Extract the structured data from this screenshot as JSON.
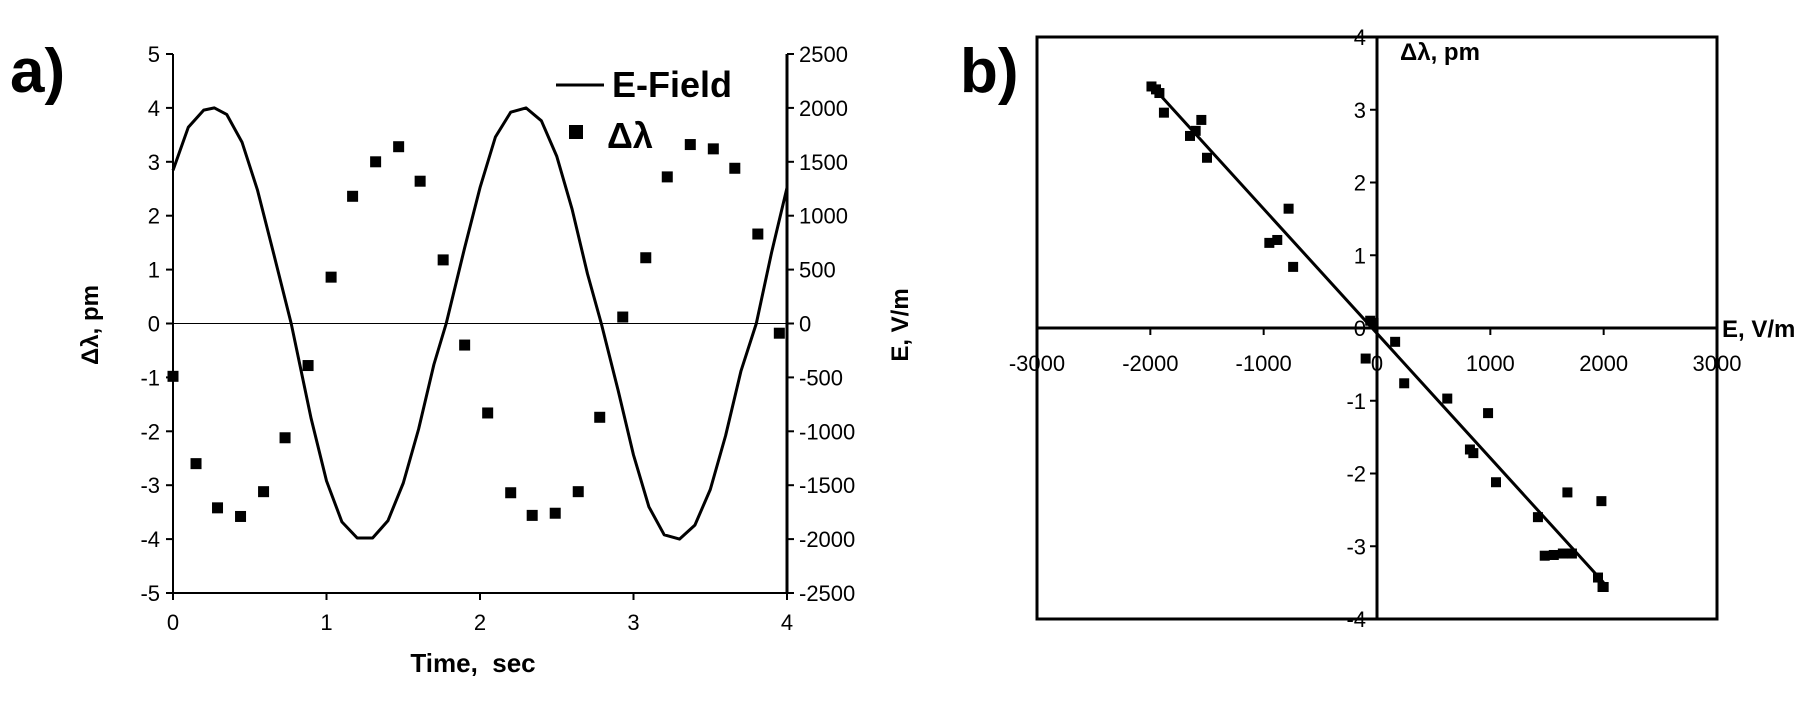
{
  "chart_data": [
    {
      "panel": "a)",
      "type": "line",
      "title": "",
      "xlabel": "Time,  sec",
      "ylabel": "Δλ, pm",
      "y2label": "E, V/m",
      "xlim": [
        0,
        4
      ],
      "ylim": [
        -5,
        5
      ],
      "y2lim": [
        -2500,
        2500
      ],
      "xticks": [
        "0",
        "1",
        "2",
        "3",
        "4"
      ],
      "yticks": [
        "-5",
        "-4",
        "-3",
        "-2",
        "-1",
        "0",
        "1",
        "2",
        "3",
        "4",
        "5"
      ],
      "y2ticks": [
        "-2500",
        "-2000",
        "-1500",
        "-1000",
        "-500",
        "0",
        "500",
        "1000",
        "1500",
        "2000",
        "2500"
      ],
      "zero_line": true,
      "grid": false,
      "legend": {
        "position": "top-right",
        "entries": [
          {
            "label": "E-Field",
            "marker": "line"
          },
          {
            "label": "Δλ",
            "marker": "square"
          }
        ]
      },
      "series": [
        {
          "name": "E-Field",
          "axis": "right",
          "style": "line",
          "x": [
            0.0,
            0.1,
            0.2,
            0.27,
            0.35,
            0.45,
            0.55,
            0.65,
            0.77,
            0.9,
            1.0,
            1.1,
            1.2,
            1.3,
            1.4,
            1.5,
            1.6,
            1.7,
            1.78,
            1.9,
            2.0,
            2.1,
            2.2,
            2.3,
            2.4,
            2.5,
            2.6,
            2.7,
            2.79,
            2.9,
            3.0,
            3.1,
            3.2,
            3.3,
            3.4,
            3.5,
            3.6,
            3.7,
            3.8,
            3.9,
            4.0
          ],
          "y": [
            1420,
            1820,
            1980,
            2000,
            1940,
            1680,
            1240,
            680,
            0,
            -880,
            -1460,
            -1840,
            -1990,
            -1990,
            -1830,
            -1480,
            -980,
            -380,
            0,
            700,
            1260,
            1730,
            1960,
            2000,
            1880,
            1550,
            1060,
            460,
            0,
            -620,
            -1220,
            -1700,
            -1960,
            -2000,
            -1870,
            -1540,
            -1040,
            -440,
            0,
            660,
            1260
          ]
        },
        {
          "name": "Δλ",
          "axis": "left",
          "style": "markers",
          "x": [
            0.0,
            0.15,
            0.29,
            0.44,
            0.59,
            0.73,
            0.88,
            1.03,
            1.17,
            1.32,
            1.47,
            1.61,
            1.76,
            1.9,
            2.05,
            2.2,
            2.34,
            2.49,
            2.64,
            2.78,
            2.93,
            3.08,
            3.22,
            3.37,
            3.52,
            3.66,
            3.81,
            3.95
          ],
          "y": [
            -0.98,
            -2.6,
            -3.42,
            -3.58,
            -3.12,
            -2.12,
            -0.78,
            0.86,
            2.36,
            3.0,
            3.28,
            2.64,
            1.18,
            -0.4,
            -1.66,
            -3.14,
            -3.56,
            -3.52,
            -3.12,
            -1.74,
            0.12,
            1.22,
            2.72,
            3.32,
            3.24,
            2.88,
            1.66,
            -0.18
          ]
        }
      ]
    },
    {
      "panel": "b)",
      "type": "scatter",
      "title": "",
      "xlabel": "E, V/m",
      "ylabel": "Δλ, pm",
      "xlim": [
        -3000,
        3000
      ],
      "ylim": [
        -4,
        4
      ],
      "xticks": [
        "-3000",
        "-2000",
        "-1000",
        "0",
        "1000",
        "2000",
        "3000"
      ],
      "yticks": [
        "-4",
        "-3",
        "-2",
        "-1",
        "0",
        "1",
        "2",
        "3",
        "4"
      ],
      "grid": false,
      "series": [
        {
          "name": "",
          "style": "markers",
          "x": [
            -1990,
            -1950,
            -1920,
            -1880,
            -1650,
            -1600,
            -1550,
            -1500,
            -950,
            -880,
            -780,
            -740,
            -100,
            -60,
            -30,
            160,
            240,
            620,
            980,
            1050,
            820,
            850,
            1420,
            1480,
            1560,
            1680,
            1720,
            1640,
            1950,
            1990,
            2000,
            1980
          ],
          "y": [
            3.32,
            3.28,
            3.23,
            2.96,
            2.64,
            2.71,
            2.86,
            2.34,
            1.17,
            1.21,
            1.64,
            0.84,
            -0.42,
            0.1,
            0.07,
            -0.19,
            -0.76,
            -0.97,
            -1.17,
            -2.12,
            -1.67,
            -1.72,
            -2.6,
            -3.13,
            -3.12,
            -2.26,
            -3.1,
            -3.1,
            -3.43,
            -3.56,
            -3.56,
            -2.38
          ]
        },
        {
          "name": "",
          "style": "fit-line",
          "x": [
            -2000,
            2000
          ],
          "y": [
            3.35,
            -3.5
          ]
        }
      ]
    }
  ]
}
